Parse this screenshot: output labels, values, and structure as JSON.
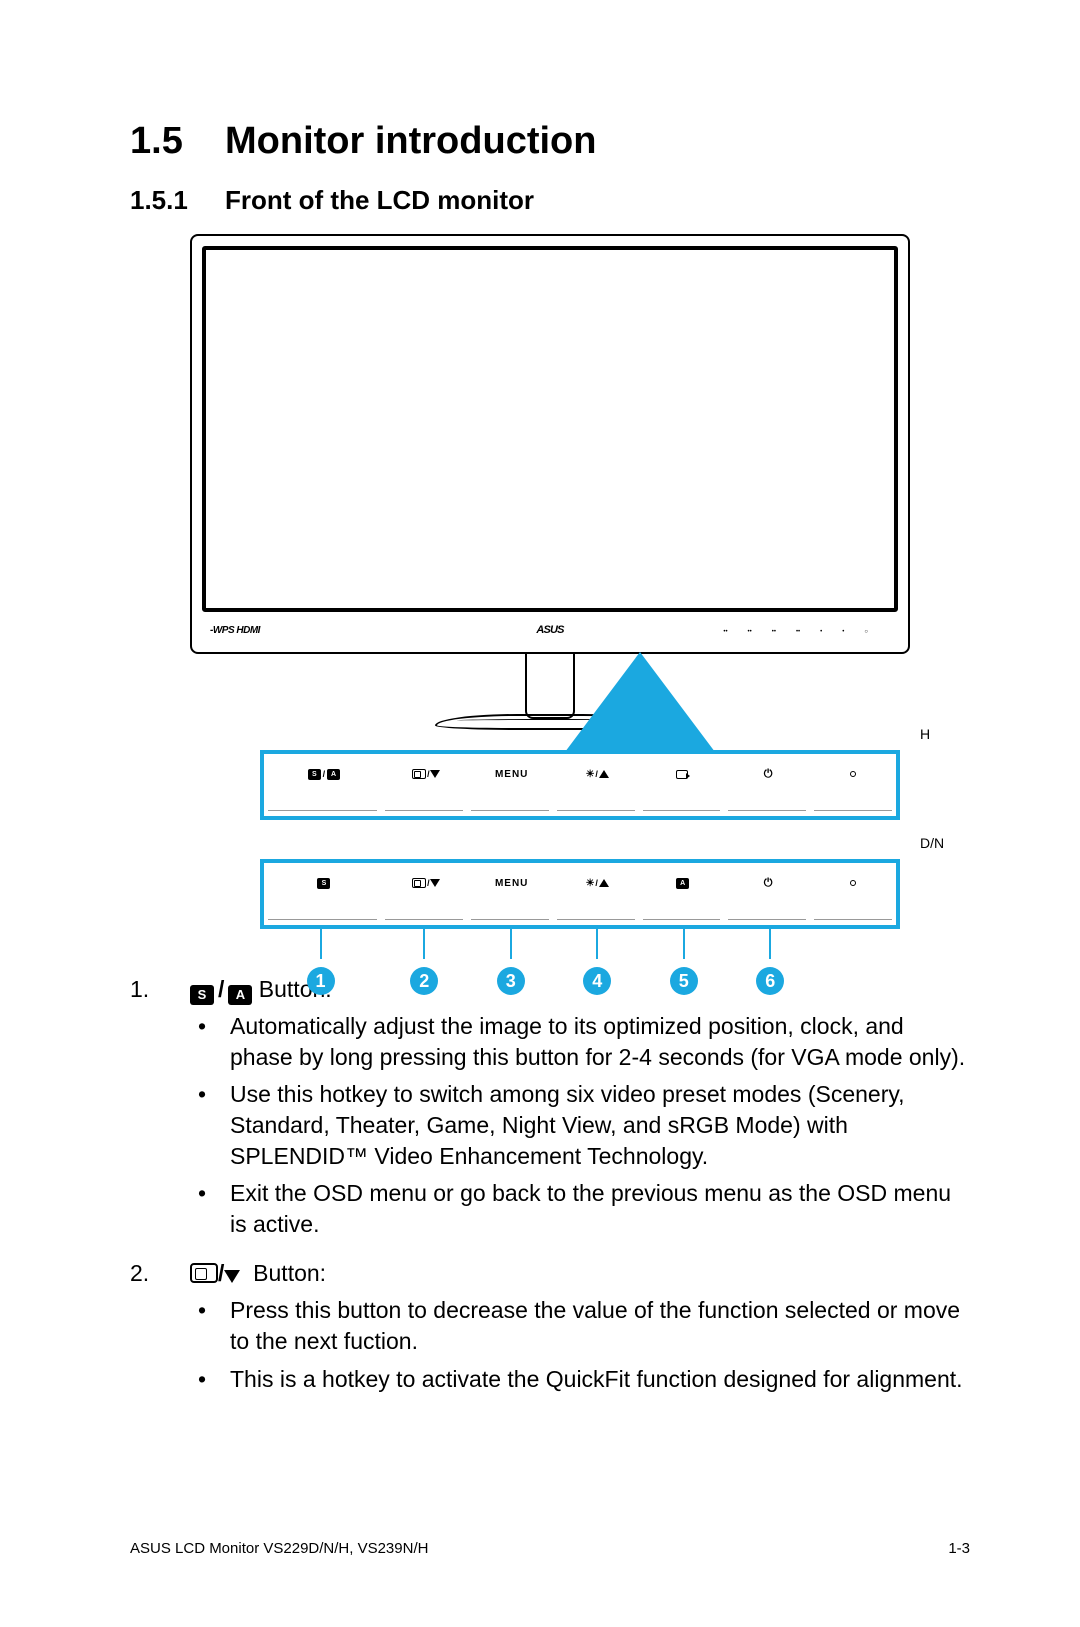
{
  "accent_color": "#1ba8e0",
  "heading": {
    "number": "1.5",
    "title": "Monitor introduction"
  },
  "subheading": {
    "number": "1.5.1",
    "title": "Front of the LCD monitor"
  },
  "diagram": {
    "bezel_left_label": "-WPS HDMI",
    "brand": "ASUS",
    "panel_h_label": "H",
    "panel_dn_label": "D/N",
    "panel_h_buttons": [
      "S/A",
      "QF/▼",
      "MENU",
      "☼/▲",
      "SRC",
      "PWR",
      "LED"
    ],
    "panel_dn_buttons": [
      "S",
      "QF/▼",
      "MENU",
      "☼/▲",
      "A",
      "PWR",
      "LED"
    ],
    "callouts": [
      "1",
      "2",
      "3",
      "4",
      "5",
      "6"
    ]
  },
  "items": [
    {
      "idx": "1.",
      "icon_label": "S / A",
      "head_suffix": " Button:",
      "bullets": [
        "Automatically adjust the image to its optimized position, clock, and phase by long pressing this button for 2-4 seconds (for VGA mode only).",
        "Use this hotkey to switch among six video preset modes (Scenery, Standard, Theater, Game, Night View, and sRGB Mode) with SPLENDID™ Video Enhancement Technology.",
        "Exit the OSD menu or go back to the previous menu as the OSD menu is active."
      ]
    },
    {
      "idx": "2.",
      "icon_label": "QF/▼",
      "head_suffix": " Button:",
      "bullets": [
        "Press this button to decrease the value of the function selected or move to the next fuction.",
        "This is a hotkey to activate the QuickFit function designed for alignment."
      ]
    }
  ],
  "footer": {
    "left": "ASUS LCD Monitor VS229D/N/H, VS239N/H",
    "right": "1-3"
  }
}
